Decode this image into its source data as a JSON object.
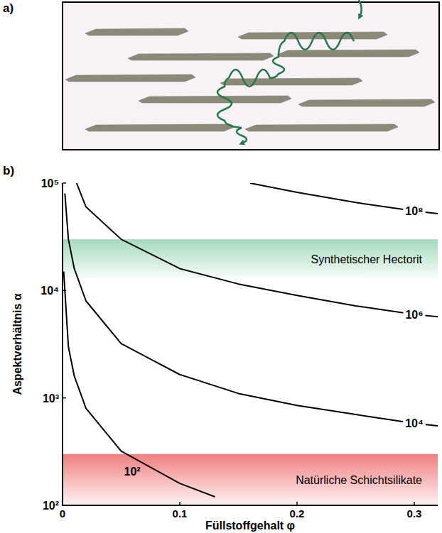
{
  "panel_labels": [
    "a)",
    "b)"
  ],
  "chart_data": {
    "type": "line",
    "log": "y",
    "grid": false,
    "x_label": "Füllstoffgehalt φ",
    "y_label": "Aspektverhältnis α",
    "xlim": [
      0,
      0.32
    ],
    "ylim": [
      100,
      100000
    ],
    "xticks": [
      0,
      0.1,
      0.2,
      0.3
    ],
    "yticks": [
      {
        "value": 100,
        "label": "10²"
      },
      {
        "value": 1000,
        "label": "10³"
      },
      {
        "value": 10000,
        "label": "10⁴"
      },
      {
        "value": 100000,
        "label": "10⁵"
      }
    ],
    "bands": [
      {
        "label": "Synthetischer Hectorit",
        "range": [
          13000,
          30000
        ],
        "color": "#9fd9b9"
      },
      {
        "label": "Natürliche Schichtsilikate",
        "range": [
          100,
          300
        ],
        "color": "#f07878"
      }
    ],
    "series": [
      {
        "name": "10⁸",
        "color": "#000000",
        "x": [
          0.16,
          0.2,
          0.25,
          0.3,
          0.32
        ],
        "values": [
          100000,
          82000,
          66000,
          55000,
          52000
        ]
      },
      {
        "name": "10⁶",
        "color": "#000000",
        "x": [
          0.012,
          0.02,
          0.05,
          0.1,
          0.15,
          0.2,
          0.25,
          0.3,
          0.32
        ],
        "values": [
          100000,
          60000,
          30000,
          16000,
          11500,
          9000,
          7200,
          6000,
          5700
        ]
      },
      {
        "name": "10⁴",
        "color": "#000000",
        "x": [
          0.002,
          0.005,
          0.01,
          0.02,
          0.05,
          0.1,
          0.15,
          0.2,
          0.25,
          0.3,
          0.32
        ],
        "values": [
          80000,
          30000,
          16000,
          8000,
          3200,
          1650,
          1100,
          850,
          700,
          580,
          550
        ]
      },
      {
        "name": "10²",
        "color": "#000000",
        "x": [
          0.001,
          0.005,
          0.01,
          0.02,
          0.05,
          0.1,
          0.13
        ],
        "values": [
          15000,
          3000,
          1600,
          800,
          320,
          160,
          120
        ]
      }
    ]
  }
}
